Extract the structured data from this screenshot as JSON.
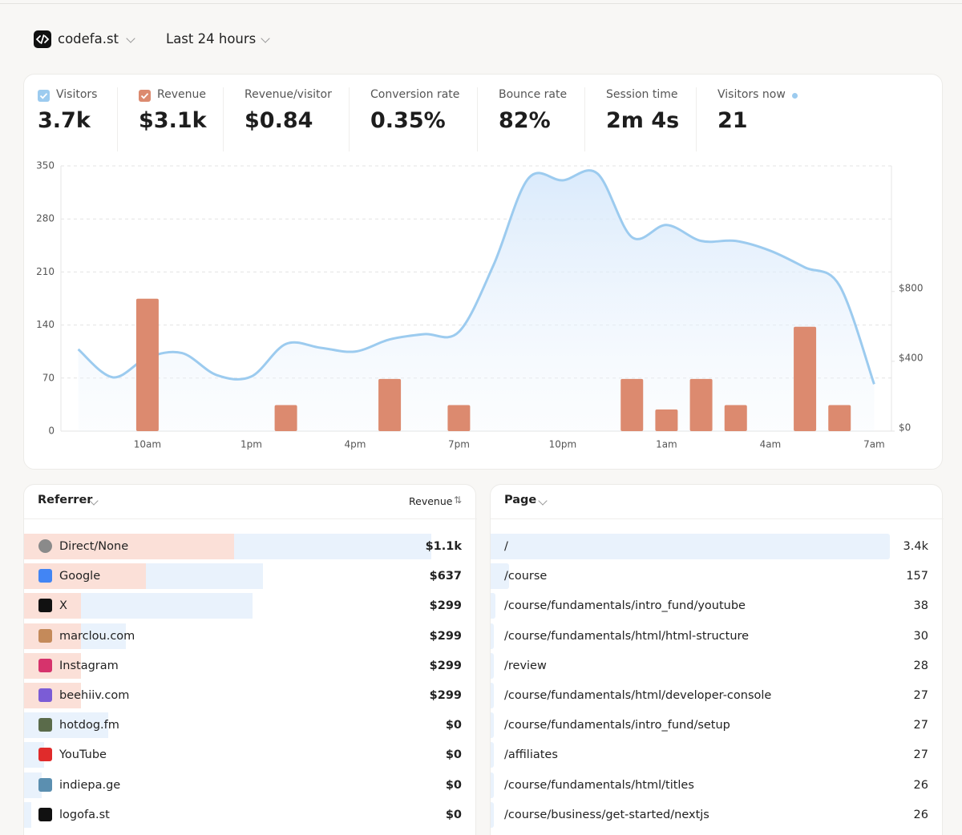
{
  "header": {
    "site": "codefa.st",
    "range": "Last 24 hours"
  },
  "metrics": [
    {
      "value": "3.7k"
    },
    {
      "value": "$3.1k"
    },
    {
      "label": "Revenue/visitor",
      "value": "$0.84"
    },
    {
      "label": "Conversion rate",
      "value": "0.35%"
    },
    {
      "label": "Bounce rate",
      "value": "82%"
    },
    {
      "label": "Session time",
      "value": "2m 4s"
    },
    {
      "label": "Visitors now",
      "value": "21"
    }
  ],
  "chart_data": {
    "type": "line",
    "categories": [
      null,
      null,
      "10am",
      null,
      null,
      "1pm",
      null,
      null,
      "4pm",
      null,
      null,
      "7pm",
      null,
      null,
      "10pm",
      null,
      null,
      "1am",
      null,
      null,
      "4am",
      null,
      null,
      "7am"
    ],
    "series": [
      {
        "name": "Visitors",
        "type": "line",
        "color": "#9ccbef",
        "values": [
          108,
          71,
          97,
          103,
          74,
          72,
          115,
          110,
          105,
          121,
          128,
          131,
          219,
          333,
          331,
          340,
          256,
          272,
          251,
          251,
          238,
          216,
          192,
          62
        ]
      },
      {
        "name": "Revenue",
        "type": "bar",
        "axis": "y2",
        "color": "#dc8a6f",
        "values": [
          null,
          null,
          759,
          null,
          null,
          null,
          149,
          null,
          null,
          299,
          null,
          149,
          null,
          null,
          null,
          null,
          299,
          124,
          299,
          149,
          null,
          598,
          149,
          null
        ]
      }
    ],
    "ylim": [
      0,
      350
    ],
    "yticks": [
      0,
      70,
      140,
      210,
      280,
      350
    ],
    "y2lim": [
      0,
      1520
    ],
    "y2ticks": [
      {
        "value": 0,
        "label": "$0"
      },
      {
        "value": 400,
        "label": "$400"
      },
      {
        "value": 800,
        "label": "$800"
      }
    ],
    "grid": true
  },
  "referrers": {
    "title": "Referrer",
    "sort": "Revenue",
    "rows": [
      {
        "name": "Direct/None",
        "revenue": 1100,
        "revenue_label": "$1.1k",
        "visitors": 1400
      },
      {
        "name": "Google",
        "revenue": 637,
        "revenue_label": "$637",
        "visitors": 820
      },
      {
        "name": "X",
        "revenue": 299,
        "revenue_label": "$299",
        "visitors": 785
      },
      {
        "name": "marclou.com",
        "revenue": 299,
        "revenue_label": "$299",
        "visitors": 350
      },
      {
        "name": "Instagram",
        "revenue": 299,
        "revenue_label": "$299",
        "visitors": 190
      },
      {
        "name": "beehiiv.com",
        "revenue": 299,
        "revenue_label": "$299",
        "visitors": 190
      },
      {
        "name": "hotdog.fm",
        "revenue": 0,
        "revenue_label": "$0",
        "visitors": 290
      },
      {
        "name": "YouTube",
        "revenue": 0,
        "revenue_label": "$0",
        "visitors": 70
      },
      {
        "name": "indiepa.ge",
        "revenue": 0,
        "revenue_label": "$0",
        "visitors": 60
      },
      {
        "name": "logofa.st",
        "revenue": 0,
        "revenue_label": "$0",
        "visitors": 25
      }
    ]
  },
  "pages": {
    "title": "Page",
    "rows": [
      {
        "path": "/",
        "visitors": 3400,
        "visitors_label": "3.4k"
      },
      {
        "path": "/course",
        "visitors": 157
      },
      {
        "path": "/course/fundamentals/intro_fund/youtube",
        "visitors": 38
      },
      {
        "path": "/course/fundamentals/html/html-structure",
        "visitors": 30
      },
      {
        "path": "/review",
        "visitors": 28
      },
      {
        "path": "/course/fundamentals/html/developer-console",
        "visitors": 27
      },
      {
        "path": "/course/fundamentals/intro_fund/setup",
        "visitors": 27
      },
      {
        "path": "/affiliates",
        "visitors": 27
      },
      {
        "path": "/course/fundamentals/html/titles",
        "visitors": 26
      },
      {
        "path": "/course/business/get-started/nextjs",
        "visitors": 26
      }
    ]
  }
}
